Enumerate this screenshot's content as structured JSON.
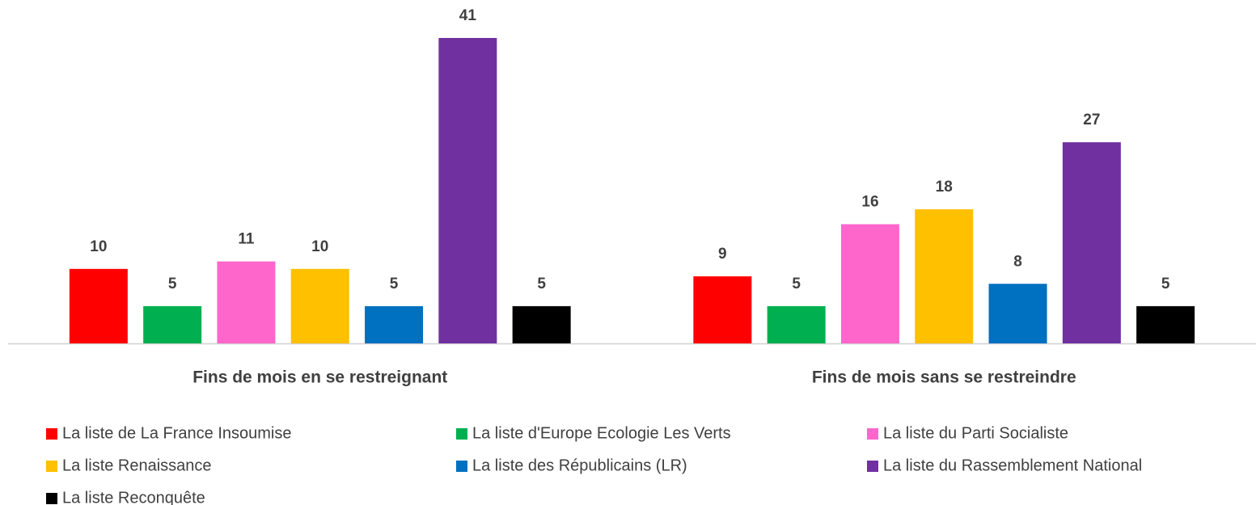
{
  "chart_data": {
    "type": "bar",
    "categories": [
      "Fins de mois en se restreignant",
      "Fins de mois sans se restreindre"
    ],
    "series": [
      {
        "name": "La liste de La France Insoumise",
        "color": "#ff0000",
        "values": [
          10,
          9
        ]
      },
      {
        "name": "La liste d'Europe Ecologie Les Verts",
        "color": "#00b050",
        "values": [
          5,
          5
        ]
      },
      {
        "name": "La liste du Parti Socialiste",
        "color": "#ff66cc",
        "values": [
          11,
          16
        ]
      },
      {
        "name": "La liste Renaissance",
        "color": "#ffc000",
        "values": [
          10,
          18
        ]
      },
      {
        "name": "La liste des Républicains (LR)",
        "color": "#0070c0",
        "values": [
          5,
          8
        ]
      },
      {
        "name": "La liste du Rassemblement National",
        "color": "#7030a0",
        "values": [
          41,
          27
        ]
      },
      {
        "name": "La liste Reconquête",
        "color": "#000000",
        "values": [
          5,
          5
        ]
      }
    ],
    "legend": "bottom"
  }
}
